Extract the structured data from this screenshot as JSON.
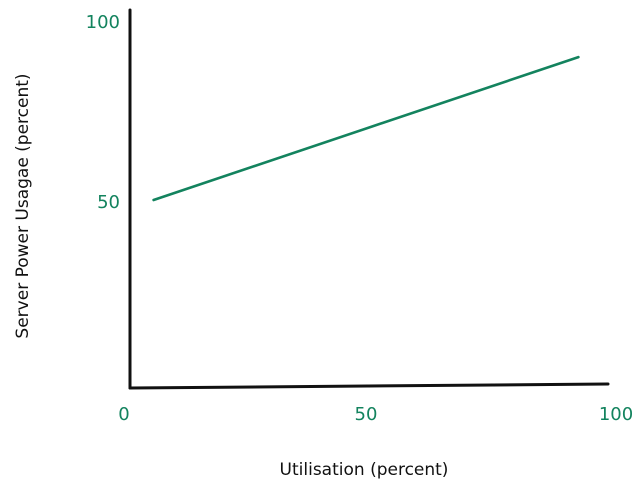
{
  "colors": {
    "axis": "#111111",
    "series": "#13835e",
    "tick_text": "#13835e",
    "label_text": "#111111"
  },
  "chart_data": {
    "type": "line",
    "title": "",
    "xlabel": "Utilisation (percent)",
    "ylabel": "Server Power Usagae (percent)",
    "xlim": [
      0,
      100
    ],
    "ylim": [
      0,
      100
    ],
    "x_ticks": [
      "0",
      "50",
      "100"
    ],
    "y_ticks": [
      "50",
      "100"
    ],
    "grid": false,
    "legend": "none",
    "series": [
      {
        "x": [
          5,
          95
        ],
        "y": [
          50,
          88
        ]
      }
    ]
  }
}
